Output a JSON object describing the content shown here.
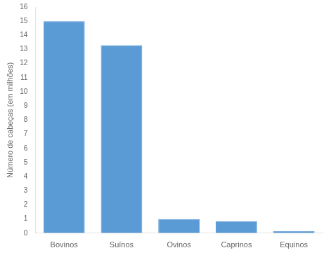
{
  "chart_data": {
    "type": "bar",
    "categories": [
      "Bovinos",
      "Suínos",
      "Ovinos",
      "Caprinos",
      "Equinos"
    ],
    "values": [
      15.0,
      13.3,
      1.0,
      0.85,
      0.15
    ],
    "color": "#5b9bd5",
    "ylabel": "Número de cabeças (em milhões)",
    "ylim": [
      0,
      16
    ],
    "yticks": [
      0,
      1,
      2,
      3,
      4,
      5,
      6,
      7,
      8,
      9,
      10,
      11,
      12,
      13,
      14,
      15,
      16
    ],
    "grid": false
  }
}
